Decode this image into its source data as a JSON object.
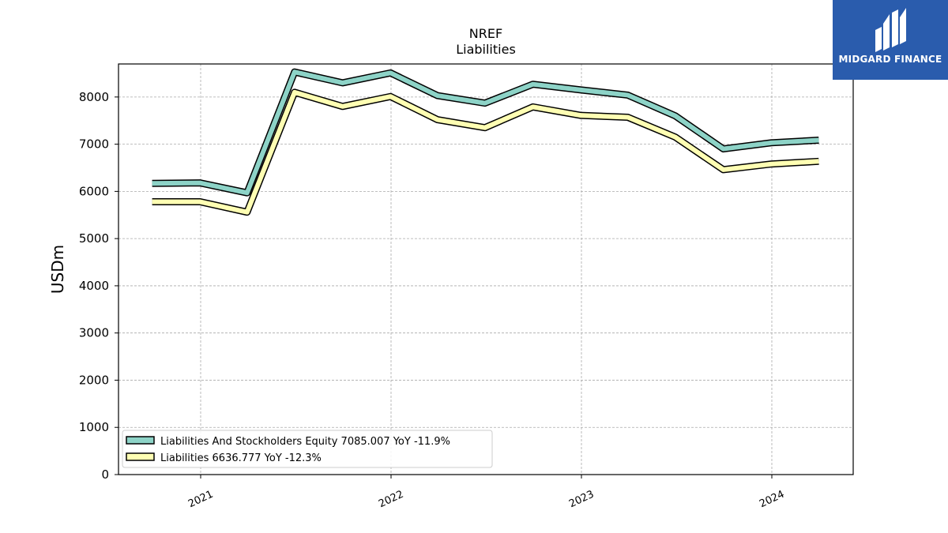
{
  "chart_data": {
    "type": "line",
    "title": "NREF",
    "subtitle": "Liabilities",
    "ylabel": "USDm",
    "xlabel": "",
    "ylim": [
      0,
      8700
    ],
    "yticks": [
      0,
      1000,
      2000,
      3000,
      4000,
      5000,
      6000,
      7000,
      8000
    ],
    "xticks": [
      "2021",
      "2022",
      "2023",
      "2024"
    ],
    "grid": true,
    "legend_position": "lower-left",
    "x": [
      "2020-09-30",
      "2020-12-31",
      "2021-03-31",
      "2021-06-30",
      "2021-09-30",
      "2021-12-31",
      "2022-03-31",
      "2022-06-30",
      "2022-09-30",
      "2022-12-31",
      "2023-03-31",
      "2023-06-30",
      "2023-09-30",
      "2023-12-31",
      "2024-03-31"
    ],
    "series": [
      {
        "name": "Liabilities And Stockholders Equity",
        "legend_label": "Liabilities And Stockholders Equity  7085.007 YoY -11.9%",
        "color": "#8dd3c7",
        "values": [
          6170,
          6180,
          5970,
          8530,
          8300,
          8510,
          8030,
          7870,
          8270,
          8150,
          8040,
          7600,
          6900,
          7030,
          7085
        ]
      },
      {
        "name": "Liabilities",
        "legend_label": "Liabilities  6636.777 YoY -12.3%",
        "color": "#ffffb3",
        "values": [
          5780,
          5780,
          5560,
          8100,
          7800,
          8010,
          7520,
          7350,
          7790,
          7610,
          7570,
          7150,
          6460,
          6580,
          6637
        ]
      }
    ]
  },
  "logo": {
    "text": "MIDGARD FINANCE",
    "background": "#2a5cad"
  }
}
